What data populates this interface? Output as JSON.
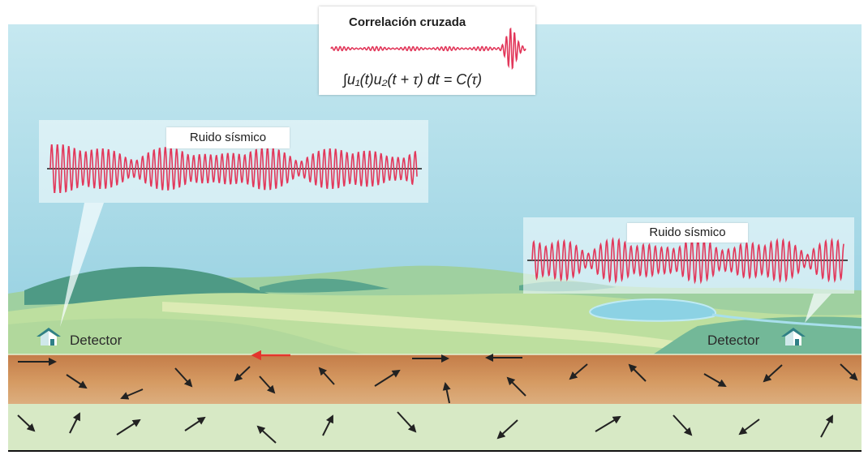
{
  "cross_correlation": {
    "title": "Correlación cruzada",
    "formula": "∫u₁(t)u₂(t + τ) dt = C(τ)"
  },
  "left_panel": {
    "label": "Ruido sísmico"
  },
  "right_panel": {
    "label": "Ruido sísmico"
  },
  "detectors": {
    "left": {
      "label": "Detector",
      "icon": "house-icon"
    },
    "right": {
      "label": "Detector",
      "icon": "house-icon"
    }
  },
  "colors": {
    "waveform": "#e2375a",
    "waveform_axis": "#1a1a1a",
    "highlight_arrow": "#e3362d",
    "arrow": "#222222",
    "sky_top": "#c6e8f0",
    "sky_bottom": "#93cfe0",
    "crust_top": "#c47c48",
    "crust_bottom": "#dcae7f",
    "deep_layer": "#d7e9c5",
    "detector_roof": "#2f7f86"
  }
}
